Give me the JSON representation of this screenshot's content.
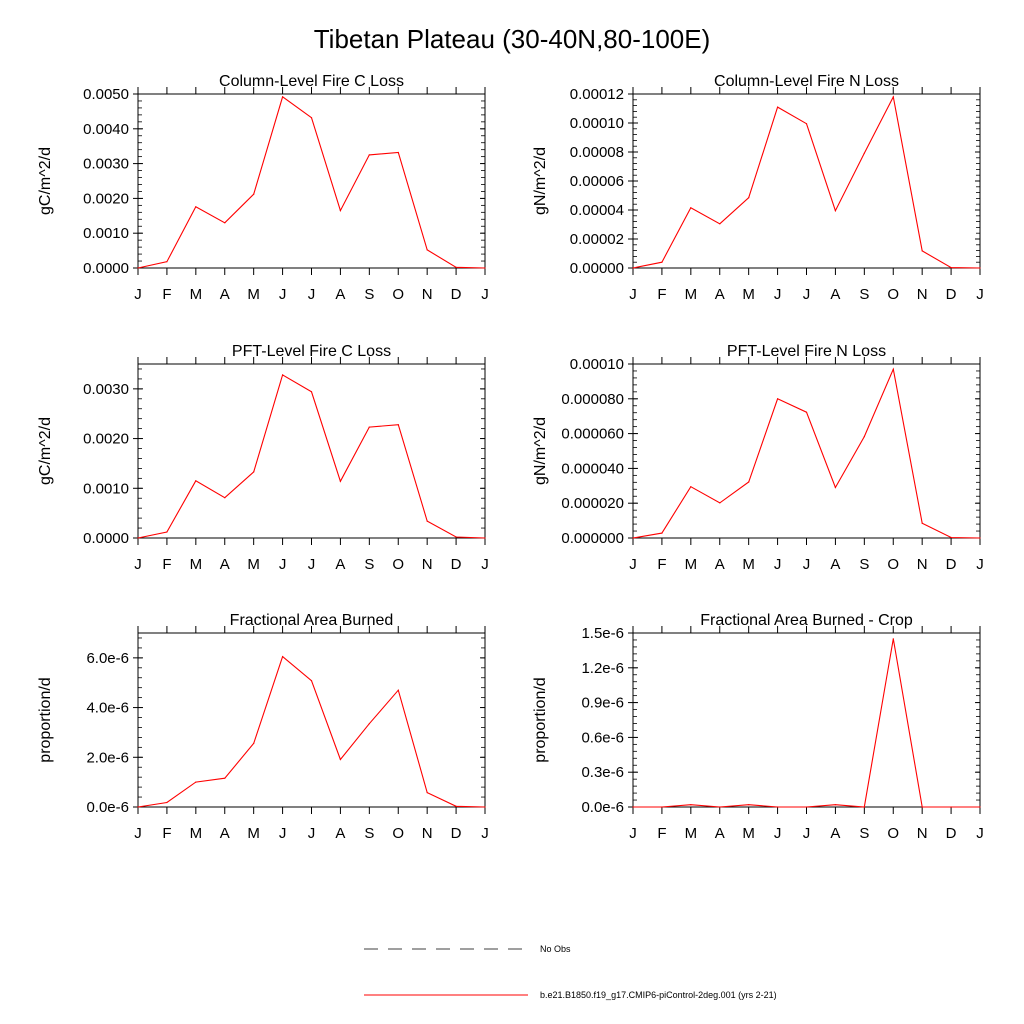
{
  "figure_title": "Tibetan Plateau (30-40N,80-100E)",
  "colors": {
    "model_line": "#ff0000",
    "obs_line": "#000000",
    "axis": "#000000",
    "background": "#ffffff"
  },
  "legend": {
    "obs_label": "No Obs",
    "model_label": "b.e21.B1850.f19_g17.CMIP6-piControl-2deg.001 (yrs 2-21)"
  },
  "chart_data": [
    {
      "type": "line",
      "title": "Column-Level Fire C Loss",
      "ylabel": "gC/m^2/d",
      "xlabel": "",
      "categories": [
        "J",
        "F",
        "M",
        "A",
        "M",
        "J",
        "J",
        "A",
        "S",
        "O",
        "N",
        "D",
        "J"
      ],
      "ylim": [
        0,
        0.005
      ],
      "yticks": [
        "0.0000",
        "0.0010",
        "0.0020",
        "0.0030",
        "0.0040",
        "0.0050"
      ],
      "ytick_values": [
        0,
        0.001,
        0.002,
        0.003,
        0.004,
        0.005
      ],
      "minor_step": 0.0002,
      "series": [
        {
          "values": [
            0.0,
            0.00018,
            0.00176,
            0.0013,
            0.00212,
            0.00492,
            0.00432,
            0.00165,
            0.00325,
            0.00332,
            0.00052,
            2e-05,
            0.0
          ]
        }
      ]
    },
    {
      "type": "line",
      "title": "Column-Level Fire N Loss",
      "ylabel": "gN/m^2/d",
      "xlabel": "",
      "categories": [
        "J",
        "F",
        "M",
        "A",
        "M",
        "J",
        "J",
        "A",
        "S",
        "O",
        "N",
        "D",
        "J"
      ],
      "ylim": [
        0,
        0.00012
      ],
      "yticks": [
        "0.00000",
        "0.00002",
        "0.00004",
        "0.00006",
        "0.00008",
        "0.00010",
        "0.00012"
      ],
      "ytick_values": [
        0,
        2e-05,
        4e-05,
        6e-05,
        8e-05,
        0.0001,
        0.00012
      ],
      "minor_step": 4e-06,
      "series": [
        {
          "values": [
            0.0,
            4e-06,
            4.15e-05,
            3.05e-05,
            4.85e-05,
            0.000111,
            9.95e-05,
            3.95e-05,
            7.92e-05,
            0.000118,
            1.18e-05,
            3e-07,
            0.0
          ]
        }
      ]
    },
    {
      "type": "line",
      "title": "PFT-Level Fire C Loss",
      "ylabel": "gC/m^2/d",
      "xlabel": "",
      "categories": [
        "J",
        "F",
        "M",
        "A",
        "M",
        "J",
        "J",
        "A",
        "S",
        "O",
        "N",
        "D",
        "J"
      ],
      "ylim": [
        0,
        0.0035
      ],
      "yticks": [
        "0.0000",
        "0.0010",
        "0.0020",
        "0.0030"
      ],
      "ytick_values": [
        0,
        0.001,
        0.002,
        0.003
      ],
      "minor_step": 0.0002,
      "series": [
        {
          "values": [
            0.0,
            0.00012,
            0.00115,
            0.00081,
            0.00133,
            0.00328,
            0.00294,
            0.00114,
            0.00223,
            0.00228,
            0.00034,
            2e-05,
            0.0
          ]
        }
      ]
    },
    {
      "type": "line",
      "title": "PFT-Level Fire N Loss",
      "ylabel": "gN/m^2/d",
      "xlabel": "",
      "categories": [
        "J",
        "F",
        "M",
        "A",
        "M",
        "J",
        "J",
        "A",
        "S",
        "O",
        "N",
        "D",
        "J"
      ],
      "ylim": [
        0,
        0.0001
      ],
      "yticks": [
        "0.000000",
        "0.000020",
        "0.000040",
        "0.000060",
        "0.000080",
        "0.00010"
      ],
      "ytick_values": [
        0,
        2e-05,
        4e-05,
        6e-05,
        8e-05,
        0.0001
      ],
      "minor_step": 4e-06,
      "series": [
        {
          "values": [
            0.0,
            2.8e-06,
            2.95e-05,
            2.02e-05,
            3.22e-05,
            8e-05,
            7.23e-05,
            2.9e-05,
            5.83e-05,
            9.7e-05,
            8.5e-06,
            3e-07,
            0.0
          ]
        }
      ]
    },
    {
      "type": "line",
      "title": "Fractional Area Burned",
      "ylabel": "proportion/d",
      "xlabel": "",
      "categories": [
        "J",
        "F",
        "M",
        "A",
        "M",
        "J",
        "J",
        "A",
        "S",
        "O",
        "N",
        "D",
        "J"
      ],
      "ylim": [
        0,
        7e-06
      ],
      "yticks": [
        "0.0e-6",
        "2.0e-6",
        "4.0e-6",
        "6.0e-6"
      ],
      "ytick_values": [
        0,
        2e-06,
        4e-06,
        6e-06
      ],
      "minor_step": 4e-07,
      "series": [
        {
          "values": [
            0.0,
            1.8e-07,
            1e-06,
            1.16e-06,
            2.56e-06,
            6.05e-06,
            5.08e-06,
            1.91e-06,
            3.35e-06,
            4.7e-06,
            5.8e-07,
            3e-08,
            0.0
          ]
        }
      ]
    },
    {
      "type": "line",
      "title": "Fractional Area Burned - Crop",
      "ylabel": "proportion/d",
      "xlabel": "",
      "categories": [
        "J",
        "F",
        "M",
        "A",
        "M",
        "J",
        "J",
        "A",
        "S",
        "O",
        "N",
        "D",
        "J"
      ],
      "ylim": [
        0,
        1.5e-06
      ],
      "yticks": [
        "0.0e-6",
        "0.3e-6",
        "0.6e-6",
        "0.9e-6",
        "1.2e-6",
        "1.5e-6"
      ],
      "ytick_values": [
        0,
        3e-07,
        6e-07,
        9e-07,
        1.2e-06,
        1.5e-06
      ],
      "minor_step": 6e-08,
      "series": [
        {
          "values": [
            0.0,
            0.0,
            2e-08,
            0.0,
            2e-08,
            0.0,
            0.0,
            2e-08,
            0.0,
            1.45e-06,
            0.0,
            0.0,
            0.0
          ]
        }
      ]
    }
  ]
}
